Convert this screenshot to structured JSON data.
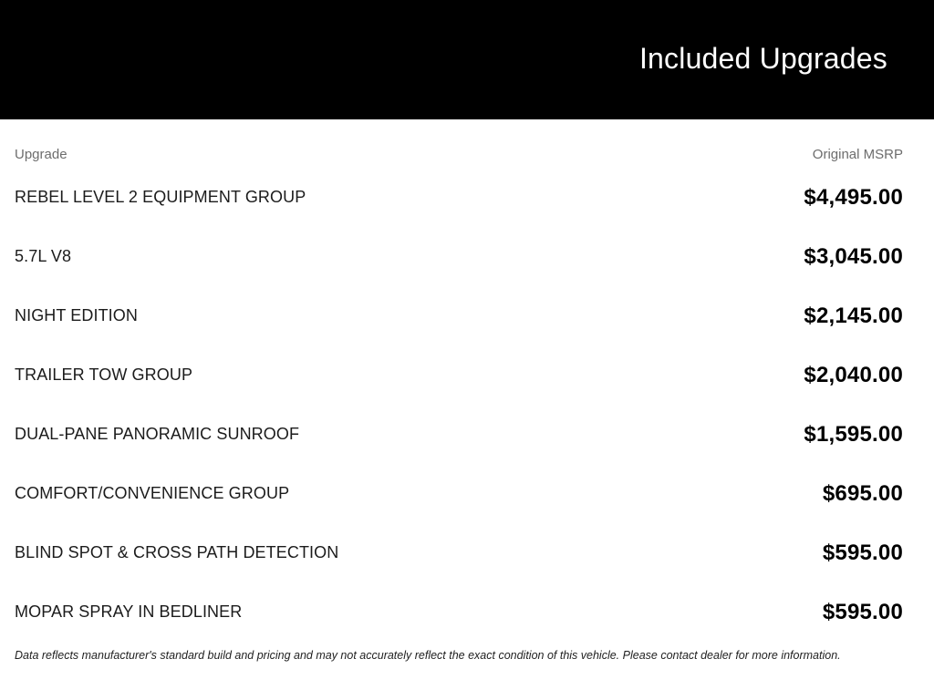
{
  "header": {
    "title": "Included Upgrades",
    "background_color": "#000000",
    "title_color": "#ffffff"
  },
  "table": {
    "columns": {
      "upgrade": "Upgrade",
      "msrp": "Original MSRP"
    },
    "rows": [
      {
        "name": "REBEL LEVEL 2 EQUIPMENT GROUP",
        "price": "$4,495.00"
      },
      {
        "name": "5.7L V8",
        "price": "$3,045.00"
      },
      {
        "name": "NIGHT EDITION",
        "price": "$2,145.00"
      },
      {
        "name": "TRAILER TOW GROUP",
        "price": "$2,040.00"
      },
      {
        "name": "DUAL-PANE PANORAMIC SUNROOF",
        "price": "$1,595.00"
      },
      {
        "name": "COMFORT/CONVENIENCE GROUP",
        "price": "$695.00"
      },
      {
        "name": "BLIND SPOT & CROSS PATH DETECTION",
        "price": "$595.00"
      },
      {
        "name": "MOPAR SPRAY IN BEDLINER",
        "price": "$595.00"
      }
    ]
  },
  "disclaimer": "Data reflects manufacturer's standard build and pricing and may not accurately reflect the exact condition of this vehicle. Please contact dealer for more information."
}
